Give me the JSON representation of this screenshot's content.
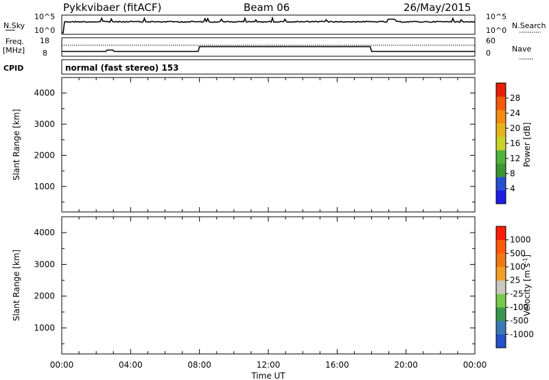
{
  "header": {
    "station": "Pykkvibaer (fitACF)",
    "beam": "Beam 06",
    "date": "26/May/2015"
  },
  "nsky_panel": {
    "left_label": "N.Sky",
    "right_label": "N.Search",
    "left_ticks": [
      "10^5",
      "10^0"
    ],
    "right_ticks": [
      "10^5",
      "10^0"
    ]
  },
  "freq_panel": {
    "left_label_1": "Freq.",
    "left_label_2": "[MHz]",
    "right_label": "Nave",
    "left_ticks": [
      "18",
      "8"
    ],
    "right_ticks": [
      "60",
      "0"
    ]
  },
  "cpid_panel": {
    "label": "CPID",
    "mode": "normal (fast stereo) 153"
  },
  "colors": {
    "power_scale": [
      "#1e1ee6",
      "#2850d2",
      "#3c9632",
      "#50b43c",
      "#c8d228",
      "#e6b41e",
      "#f08c14",
      "#f05a0a",
      "#e61e0a"
    ],
    "velocity_scale": [
      "#2850c8",
      "#3c78b4",
      "#3c9650",
      "#78c84b",
      "#c8c8c0",
      "#f0a028",
      "#f07814",
      "#ff5a0a",
      "#ff1e0a"
    ],
    "ground_scatter": "#bebeb6"
  },
  "chart_data": [
    {
      "type": "heatmap",
      "name": "power",
      "ylabel": "Slant Range [km]",
      "ylim": [
        180,
        4500
      ],
      "y_ticks": [
        "1000",
        "2000",
        "3000",
        "4000"
      ],
      "colorbar_label": "Power [dB]",
      "colorbar_ticks": [
        "28",
        "24",
        "20",
        "16",
        "12",
        "8",
        "4"
      ],
      "colorbar_range": [
        0,
        32
      ]
    },
    {
      "type": "heatmap",
      "name": "velocity",
      "ylabel": "Slant Range [km]",
      "ylim": [
        180,
        4500
      ],
      "y_ticks": [
        "1000",
        "2000",
        "3000",
        "4000"
      ],
      "colorbar_label": "Velocity [m s",
      "colorbar_sup": "-1",
      "colorbar_unit_close": "]",
      "colorbar_ticks": [
        "1000",
        "500",
        "100",
        "25",
        "-25",
        "-100",
        "-500",
        "-1000"
      ]
    }
  ],
  "time_axis": {
    "label": "Time UT",
    "ticks": [
      "00:00",
      "04:00",
      "08:00",
      "12:00",
      "16:00",
      "20:00",
      "00:00"
    ]
  }
}
